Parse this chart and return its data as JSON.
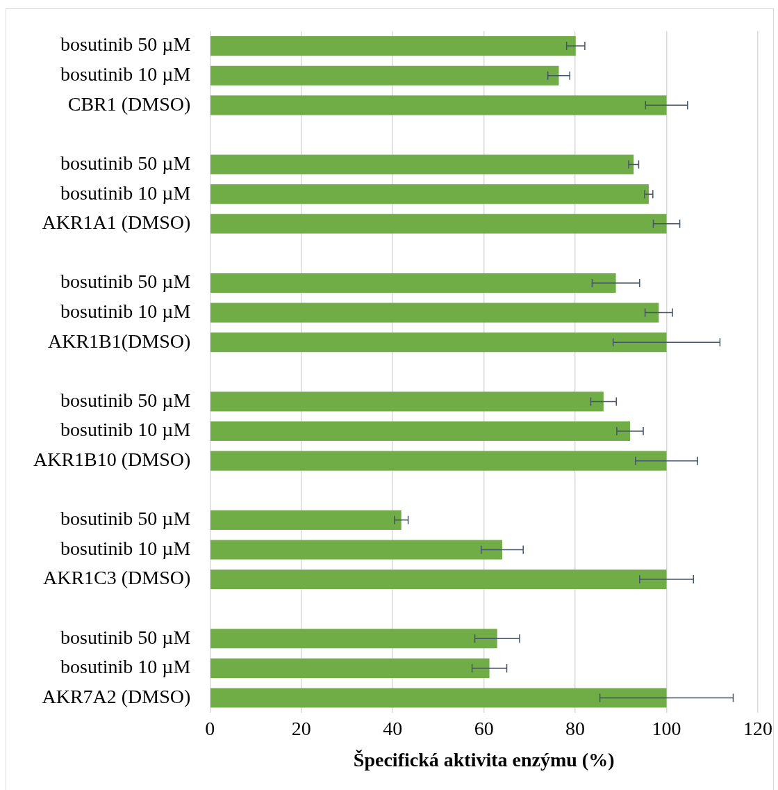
{
  "chart_data": {
    "type": "bar",
    "orientation": "horizontal",
    "xlabel": "Špecifická aktivita enzýmu (%)",
    "categories": [
      "bosutinib 50 µM",
      "bosutinib 10 µM",
      "CBR1 (DMSO)",
      null,
      "bosutinib 50 µM",
      "bosutinib 10 µM",
      "AKR1A1 (DMSO)",
      null,
      "bosutinib 50 µM",
      "bosutinib 10 µM",
      "AKR1B1(DMSO)",
      null,
      "bosutinib 50 µM",
      "bosutinib 10 µM",
      "AKR1B10 (DMSO)",
      null,
      "bosutinib 50 µM",
      "bosutinib 10 µM",
      "AKR1C3 (DMSO)",
      null,
      "bosutinib 50 µM",
      "bosutinib 10 µM",
      "AKR7A2 (DMSO)"
    ],
    "values": [
      80.1,
      76.4,
      100,
      null,
      92.8,
      96.1,
      100,
      null,
      88.9,
      98.3,
      100,
      null,
      86.2,
      92.0,
      100,
      null,
      41.9,
      64.0,
      100,
      null,
      62.9,
      61.2,
      100
    ],
    "errors": [
      2,
      2.4,
      4.6,
      null,
      1.1,
      0.9,
      2.9,
      null,
      5.2,
      3,
      11.7,
      null,
      2.8,
      2.9,
      6.8,
      null,
      1.5,
      4.6,
      5.9,
      null,
      4.9,
      3.8,
      14.6
    ],
    "color": "#70ad47",
    "xlim": [
      0,
      120
    ],
    "xticks": [
      0,
      20,
      40,
      60,
      80,
      100,
      120
    ],
    "grid": "x"
  }
}
